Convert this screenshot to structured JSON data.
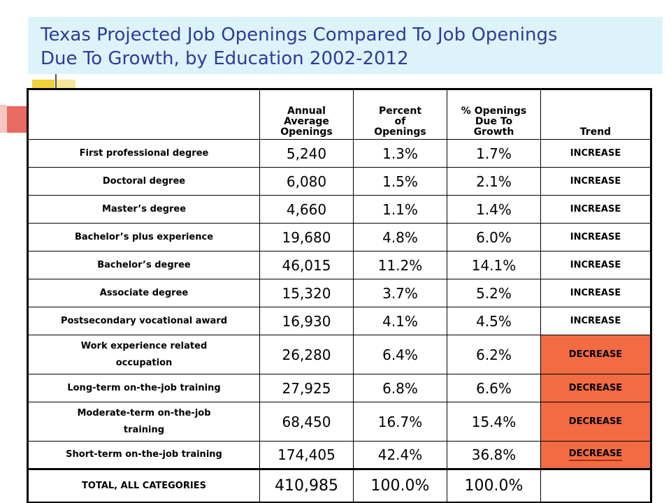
{
  "title": {
    "line1": "Texas Projected Job Openings Compared To Job Openings",
    "line2": "Due To Growth, by Education 2002-2012"
  },
  "colors": {
    "title_background": "#ddf3fa",
    "title_text": "#2e3c96",
    "decrease_fill": "#f26b43",
    "accent_yellow": "#f2d038",
    "accent_red": "#e96a60"
  },
  "table": {
    "headers": {
      "blank": "",
      "annual_average_openings": [
        "Annual",
        "Average",
        "Openings"
      ],
      "percent_of_openings": [
        "Percent",
        "of",
        "Openings"
      ],
      "pct_openings_due_to_growth": [
        "% Openings",
        "Due To",
        "Growth"
      ],
      "trend": "Trend"
    },
    "rows": [
      {
        "label": "First professional degree",
        "label_lines": [
          "First professional degree"
        ],
        "annual": "5,240",
        "percent": "1.3%",
        "growth": "1.7%",
        "trend": "INCREASE",
        "status": "increase"
      },
      {
        "label": "Doctoral degree",
        "label_lines": [
          "Doctoral degree"
        ],
        "annual": "6,080",
        "percent": "1.5%",
        "growth": "2.1%",
        "trend": "INCREASE",
        "status": "increase"
      },
      {
        "label": "Master’s degree",
        "label_lines": [
          "Master’s degree"
        ],
        "annual": "4,660",
        "percent": "1.1%",
        "growth": "1.4%",
        "trend": "INCREASE",
        "status": "increase"
      },
      {
        "label": "Bachelor’s plus experience",
        "label_lines": [
          "Bachelor’s plus experience"
        ],
        "annual": "19,680",
        "percent": "4.8%",
        "growth": "6.0%",
        "trend": "INCREASE",
        "status": "increase"
      },
      {
        "label": "Bachelor’s degree",
        "label_lines": [
          "Bachelor’s degree"
        ],
        "annual": "46,015",
        "percent": "11.2%",
        "growth": "14.1%",
        "trend": "INCREASE",
        "status": "increase"
      },
      {
        "label": "Associate degree",
        "label_lines": [
          "Associate degree"
        ],
        "annual": "15,320",
        "percent": "3.7%",
        "growth": "5.2%",
        "trend": "INCREASE",
        "status": "increase"
      },
      {
        "label": "Postsecondary vocational award",
        "label_lines": [
          "Postsecondary vocational award"
        ],
        "annual": "16,930",
        "percent": "4.1%",
        "growth": "4.5%",
        "trend": "INCREASE",
        "status": "increase"
      },
      {
        "label": "Work experience related occupation",
        "label_lines": [
          "Work experience related",
          "occupation"
        ],
        "annual": "26,280",
        "percent": "6.4%",
        "growth": "6.2%",
        "trend": "DECREASE",
        "status": "decrease"
      },
      {
        "label": "Long-term on-the-job training",
        "label_lines": [
          "Long-term on-the-job training"
        ],
        "annual": "27,925",
        "percent": "6.8%",
        "growth": "6.6%",
        "trend": "DECREASE",
        "status": "decrease"
      },
      {
        "label": "Moderate-term on-the-job training",
        "label_lines": [
          "Moderate-term on-the-job",
          "training"
        ],
        "annual": "68,450",
        "percent": "16.7%",
        "growth": "15.4%",
        "trend": "DECREASE",
        "status": "decrease"
      },
      {
        "label": "Short-term on-the-job training",
        "label_lines": [
          "Short-term on-the-job training"
        ],
        "annual": "174,405",
        "percent": "42.4%",
        "growth": "36.8%",
        "trend": "DECREASE",
        "status": "decrease"
      }
    ],
    "total": {
      "label": "TOTAL, ALL CATEGORIES",
      "annual": "410,985",
      "percent": "100.0%",
      "growth": "100.0%",
      "trend": ""
    }
  }
}
